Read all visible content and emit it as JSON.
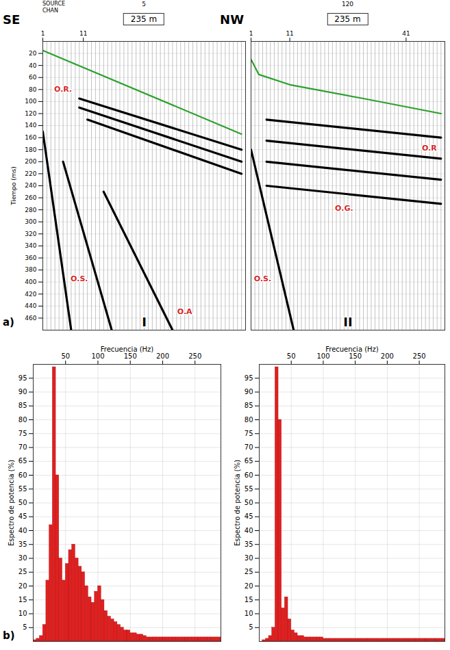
{
  "chart_data": [
    {
      "type": "line",
      "title": "I",
      "panel_label": "a)",
      "side_labels": [
        "SE",
        "NW"
      ],
      "source_label": "SOURCE",
      "channel_label": "CHAN",
      "source": 5,
      "offset_label": "235 m",
      "ylabel": "Tiempo (ms)",
      "xlim": [
        1,
        51
      ],
      "xticks": [
        1,
        11
      ],
      "ylim": [
        0,
        480
      ],
      "yticks": [
        20,
        40,
        60,
        80,
        100,
        120,
        140,
        160,
        180,
        200,
        220,
        240,
        260,
        280,
        300,
        320,
        340,
        360,
        380,
        400,
        420,
        440,
        460
      ],
      "grid": true,
      "channels": 51,
      "series": [
        {
          "color": "#2ca02c",
          "x": [
            1,
            50
          ],
          "values": [
            15,
            154
          ]
        },
        {
          "color": "#000000",
          "x": [
            10,
            50
          ],
          "values": [
            95,
            180
          ]
        },
        {
          "color": "#000000",
          "x": [
            10,
            50
          ],
          "values": [
            110,
            200
          ]
        },
        {
          "color": "#000000",
          "x": [
            12,
            50
          ],
          "values": [
            130,
            220
          ]
        },
        {
          "color": "#000000",
          "x": [
            1,
            8
          ],
          "values": [
            150,
            480
          ]
        },
        {
          "color": "#000000",
          "x": [
            6,
            18
          ],
          "values": [
            200,
            480
          ]
        },
        {
          "color": "#000000",
          "x": [
            16,
            33
          ],
          "values": [
            250,
            480
          ]
        }
      ],
      "annotations": [
        {
          "text": "O.R.",
          "x": 6,
          "y": 80,
          "color": "#d62728"
        },
        {
          "text": "O.S.",
          "x": 10,
          "y": 395,
          "color": "#d62728"
        },
        {
          "text": "O.A",
          "x": 36,
          "y": 449,
          "color": "#d62728"
        }
      ]
    },
    {
      "type": "line",
      "title": "II",
      "source": 120,
      "offset_label": "235 m",
      "xlim": [
        1,
        51
      ],
      "xticks": [
        1,
        11,
        41
      ],
      "ylim": [
        0,
        480
      ],
      "yticks": [
        20,
        40,
        60,
        80,
        100,
        120,
        140,
        160,
        180,
        200,
        220,
        240,
        260,
        280,
        300,
        320,
        340,
        360,
        380,
        400,
        420,
        440,
        460
      ],
      "grid": true,
      "tick_labels": "x",
      "channels": 51,
      "series": [
        {
          "color": "#2ca02c",
          "x": [
            1,
            3,
            11,
            30,
            50
          ],
          "values": [
            30,
            55,
            72,
            95,
            120
          ]
        },
        {
          "color": "#000000",
          "x": [
            5,
            50
          ],
          "values": [
            130,
            160
          ]
        },
        {
          "color": "#000000",
          "x": [
            5,
            50
          ],
          "values": [
            165,
            195
          ]
        },
        {
          "color": "#000000",
          "x": [
            5,
            50
          ],
          "values": [
            200,
            230
          ]
        },
        {
          "color": "#000000",
          "x": [
            5,
            50
          ],
          "values": [
            240,
            270
          ]
        },
        {
          "color": "#000000",
          "x": [
            1,
            12
          ],
          "values": [
            180,
            480
          ]
        }
      ],
      "annotations": [
        {
          "text": "O.R",
          "x": 47,
          "y": 177,
          "color": "#d62728"
        },
        {
          "text": "O.G.",
          "x": 25,
          "y": 278,
          "color": "#d62728"
        },
        {
          "text": "O.S.",
          "x": 4,
          "y": 395,
          "color": "#d62728"
        }
      ]
    },
    {
      "type": "histogram",
      "panel_label": "b)",
      "xlabel": "Frecuencia (Hz)",
      "ylabel": "Espectro de potencia (%)",
      "bins": [
        0,
        5,
        10,
        15,
        20,
        25,
        30,
        35,
        40,
        45,
        50,
        55,
        60,
        65,
        70,
        75,
        80,
        85,
        90,
        95,
        100,
        105,
        110,
        115,
        120,
        125,
        130,
        135,
        140,
        145,
        150,
        155,
        160,
        165,
        170,
        175,
        180,
        185,
        190,
        195,
        200,
        205,
        210,
        215,
        220,
        225,
        230,
        235,
        240,
        245,
        250,
        255,
        260,
        265,
        270,
        275,
        280,
        285,
        290
      ],
      "values": [
        0.5,
        1,
        2,
        6,
        22,
        42,
        99,
        60,
        30,
        22,
        28,
        33,
        35,
        30,
        27,
        25,
        20,
        16,
        14,
        18,
        20,
        15,
        11,
        9,
        8,
        7,
        6,
        5,
        4,
        4,
        3,
        3,
        2.5,
        2.5,
        2,
        1.5,
        1.5,
        1.5,
        1.5,
        1.5,
        1.5,
        1.5,
        1.5,
        1.5,
        1.5,
        1.5,
        1.5,
        1.5,
        1.5,
        1.5,
        1.5,
        1.5,
        1.5,
        1.5,
        1.5,
        1.5,
        1.5,
        1.5
      ],
      "color": "#e02020",
      "xlim": [
        0,
        290
      ],
      "xticks": [
        50,
        100,
        150,
        200,
        250
      ],
      "ylim": [
        0,
        100
      ],
      "yticks": [
        5,
        10,
        15,
        20,
        25,
        30,
        35,
        40,
        45,
        50,
        55,
        60,
        65,
        70,
        75,
        80,
        85,
        90,
        95
      ],
      "grid": true
    },
    {
      "type": "histogram",
      "xlabel": "Frecuencia (Hz)",
      "ylabel": "Espectro de potencia (%)",
      "bins": [
        0,
        5,
        10,
        15,
        20,
        25,
        30,
        35,
        40,
        45,
        50,
        55,
        60,
        65,
        70,
        75,
        80,
        85,
        90,
        95,
        100,
        105,
        110,
        115,
        120,
        125,
        130,
        135,
        140,
        145,
        150,
        155,
        160,
        165,
        170,
        175,
        180,
        185,
        190,
        195,
        200,
        205,
        210,
        215,
        220,
        225,
        230,
        235,
        240,
        245,
        250,
        255,
        260,
        265,
        270,
        275,
        280,
        285,
        290
      ],
      "values": [
        0,
        0.5,
        1,
        2,
        5,
        99,
        80,
        12,
        16,
        8,
        4,
        3,
        2,
        2,
        1.5,
        1.5,
        1.5,
        1.5,
        1.5,
        1.5,
        1,
        1,
        1,
        1,
        1,
        1,
        1,
        1,
        1,
        1,
        1,
        1,
        1,
        1,
        1,
        1,
        1,
        1,
        1,
        1,
        1,
        1,
        1,
        1,
        1,
        1,
        1,
        1,
        1,
        1,
        1,
        1,
        1,
        1,
        1,
        1,
        1,
        1
      ],
      "color": "#e02020",
      "xlim": [
        0,
        290
      ],
      "xticks": [
        50,
        100,
        150,
        200,
        250
      ],
      "ylim": [
        0,
        100
      ],
      "yticks": [
        5,
        10,
        15,
        20,
        25,
        30,
        35,
        40,
        45,
        50,
        55,
        60,
        65,
        70,
        75,
        80,
        85,
        90,
        95
      ],
      "grid": true
    }
  ]
}
